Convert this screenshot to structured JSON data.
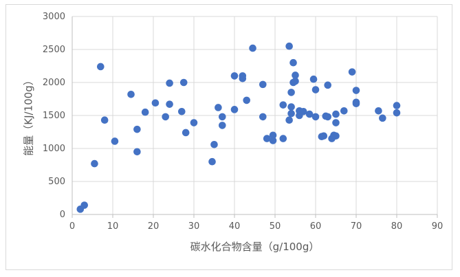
{
  "chart_data": {
    "type": "scatter",
    "title": "",
    "xlabel": "碳水化合物含量（g/100g）",
    "ylabel": "能量（KJ/100g）",
    "xlim": [
      0,
      90
    ],
    "ylim": [
      0,
      3000
    ],
    "x_ticks": [
      "0",
      "10",
      "20",
      "30",
      "40",
      "50",
      "60",
      "70",
      "80",
      "90"
    ],
    "y_ticks": [
      "0",
      "500",
      "1000",
      "1500",
      "2000",
      "2500",
      "3000"
    ],
    "grid": "vertical and horizontal major gridlines",
    "legend": "none",
    "marker_color": "#4472c4",
    "points": [
      {
        "x": 2,
        "y": 80
      },
      {
        "x": 3,
        "y": 140
      },
      {
        "x": 5.5,
        "y": 770
      },
      {
        "x": 7,
        "y": 2240
      },
      {
        "x": 8,
        "y": 1430
      },
      {
        "x": 10.5,
        "y": 1110
      },
      {
        "x": 14.5,
        "y": 1820
      },
      {
        "x": 16,
        "y": 950
      },
      {
        "x": 16,
        "y": 1290
      },
      {
        "x": 18,
        "y": 1550
      },
      {
        "x": 20.5,
        "y": 1690
      },
      {
        "x": 23,
        "y": 1480
      },
      {
        "x": 24,
        "y": 1990
      },
      {
        "x": 24,
        "y": 1670
      },
      {
        "x": 27,
        "y": 1560
      },
      {
        "x": 27.5,
        "y": 2000
      },
      {
        "x": 28,
        "y": 1240
      },
      {
        "x": 30,
        "y": 1390
      },
      {
        "x": 34.5,
        "y": 800
      },
      {
        "x": 35,
        "y": 1060
      },
      {
        "x": 36,
        "y": 1620
      },
      {
        "x": 37,
        "y": 1480
      },
      {
        "x": 37,
        "y": 1350
      },
      {
        "x": 40,
        "y": 2100
      },
      {
        "x": 40,
        "y": 1590
      },
      {
        "x": 42,
        "y": 2100
      },
      {
        "x": 42,
        "y": 2060
      },
      {
        "x": 43,
        "y": 1730
      },
      {
        "x": 44.5,
        "y": 2520
      },
      {
        "x": 47,
        "y": 1970
      },
      {
        "x": 47,
        "y": 1480
      },
      {
        "x": 48,
        "y": 1150
      },
      {
        "x": 49.5,
        "y": 1200
      },
      {
        "x": 49.5,
        "y": 1120
      },
      {
        "x": 52,
        "y": 1660
      },
      {
        "x": 52,
        "y": 1150
      },
      {
        "x": 53.5,
        "y": 2550
      },
      {
        "x": 53.5,
        "y": 1430
      },
      {
        "x": 54,
        "y": 1630
      },
      {
        "x": 54,
        "y": 1530
      },
      {
        "x": 54,
        "y": 1850
      },
      {
        "x": 54.5,
        "y": 2300
      },
      {
        "x": 54.5,
        "y": 2000
      },
      {
        "x": 55,
        "y": 2110
      },
      {
        "x": 55,
        "y": 2020
      },
      {
        "x": 56,
        "y": 1570
      },
      {
        "x": 56,
        "y": 1500
      },
      {
        "x": 57,
        "y": 1560
      },
      {
        "x": 58.5,
        "y": 1520
      },
      {
        "x": 59.5,
        "y": 2050
      },
      {
        "x": 60,
        "y": 1890
      },
      {
        "x": 60,
        "y": 1480
      },
      {
        "x": 61.5,
        "y": 1180
      },
      {
        "x": 62,
        "y": 1190
      },
      {
        "x": 62.5,
        "y": 1490
      },
      {
        "x": 63,
        "y": 1960
      },
      {
        "x": 63,
        "y": 1480
      },
      {
        "x": 64,
        "y": 1150
      },
      {
        "x": 64.5,
        "y": 1200
      },
      {
        "x": 65,
        "y": 1390
      },
      {
        "x": 65,
        "y": 1520
      },
      {
        "x": 65,
        "y": 1190
      },
      {
        "x": 67,
        "y": 1570
      },
      {
        "x": 69,
        "y": 2160
      },
      {
        "x": 70,
        "y": 1880
      },
      {
        "x": 70,
        "y": 1700
      },
      {
        "x": 70,
        "y": 1680
      },
      {
        "x": 75.5,
        "y": 1570
      },
      {
        "x": 76.5,
        "y": 1460
      },
      {
        "x": 80,
        "y": 1650
      },
      {
        "x": 80,
        "y": 1540
      }
    ]
  }
}
